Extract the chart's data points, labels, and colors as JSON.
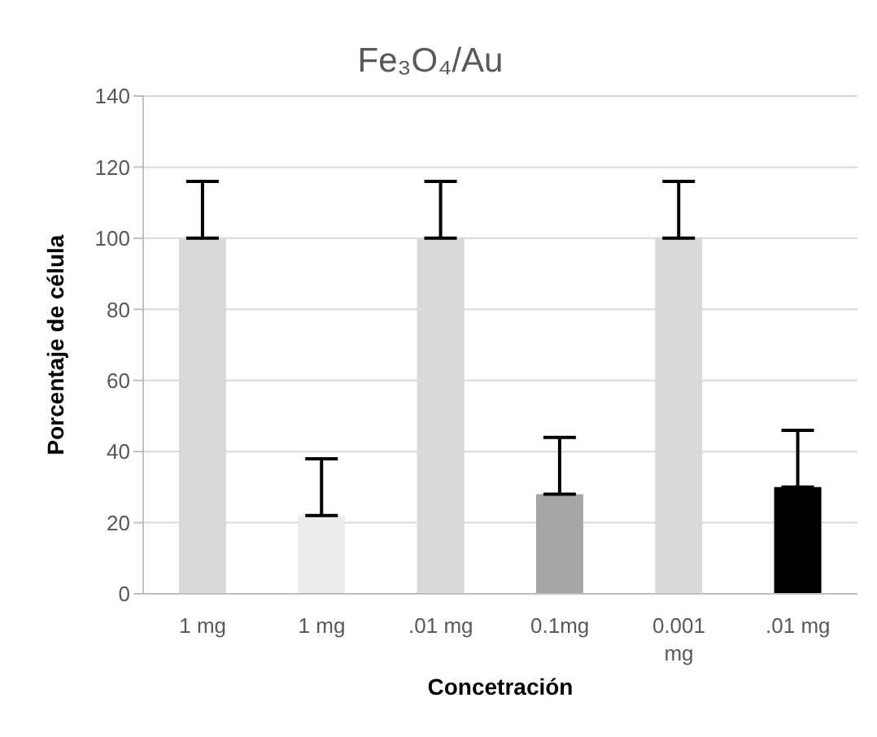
{
  "chart_data": {
    "type": "bar",
    "title": "Fe₃O₄/Au",
    "xlabel": "Concetración",
    "ylabel": "Porcentaje de célula",
    "categories": [
      "1 mg",
      "1 mg",
      ".01 mg",
      "0.1mg",
      "0.001 mg",
      ".01 mg"
    ],
    "values": [
      100,
      22,
      100,
      28,
      100,
      30
    ],
    "colors": [
      "#d9d9d9",
      "#ececec",
      "#d9d9d9",
      "#a6a6a6",
      "#d9d9d9",
      "#000000"
    ],
    "errors": [
      [
        100,
        116
      ],
      [
        22,
        38
      ],
      [
        100,
        116
      ],
      [
        28,
        44
      ],
      [
        100,
        116
      ],
      [
        30,
        46
      ]
    ],
    "ylim": [
      0,
      140
    ],
    "yticks": [
      0,
      20,
      40,
      60,
      80,
      100,
      120,
      140
    ],
    "grid": "y",
    "legend": false
  }
}
